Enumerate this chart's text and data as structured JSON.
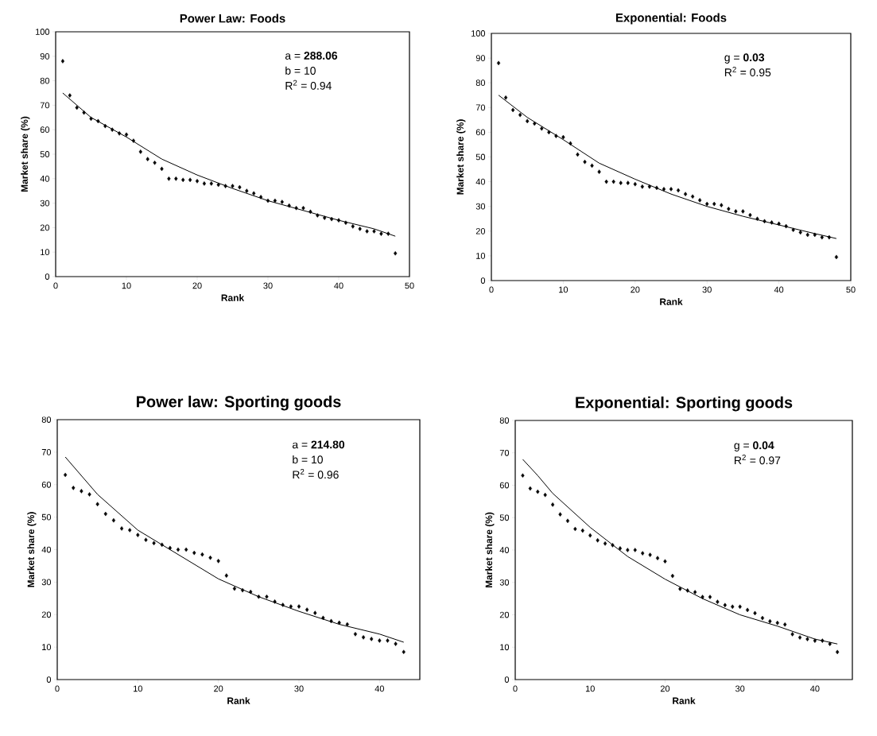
{
  "chart_data": [
    {
      "type": "scatter",
      "title": "Power Law: Foods",
      "xlabel": "Rank",
      "ylabel": "Market share (%)",
      "marker": "diamond",
      "xlim": [
        0,
        50
      ],
      "xticks": [
        0,
        10,
        20,
        30,
        40,
        50
      ],
      "ylim": [
        0,
        100
      ],
      "yticks": [
        0,
        10,
        20,
        30,
        40,
        50,
        60,
        70,
        80,
        90,
        100
      ],
      "annotations": [
        "a = **288.06**",
        "b = 10",
        "R$^{2}$ = 0.94"
      ],
      "series": [
        {
          "color": "#000000",
          "x": [
            1,
            2,
            3,
            4,
            5,
            6,
            7,
            8,
            9,
            10,
            11,
            12,
            13,
            14,
            15,
            16,
            17,
            18,
            19,
            20,
            21,
            22,
            23,
            24,
            25,
            26,
            27,
            28,
            29,
            30,
            31,
            32,
            33,
            34,
            35,
            36,
            37,
            38,
            39,
            40,
            41,
            42,
            43,
            44,
            45,
            46,
            47,
            48
          ],
          "values": [
            88,
            74,
            69,
            67,
            64.5,
            63.5,
            61.5,
            60,
            58.5,
            58,
            55.5,
            51,
            48,
            46.5,
            44,
            40,
            40,
            39.5,
            39.5,
            39,
            38,
            38,
            37.5,
            37,
            37,
            36.5,
            35,
            34,
            32.5,
            31,
            31,
            30.5,
            29,
            28,
            28,
            26.5,
            25,
            24,
            23.5,
            23,
            22,
            20.5,
            19.5,
            18.5,
            18.5,
            17.5,
            17.5,
            9.5
          ]
        },
        {
          "type": "line",
          "color": "#000000",
          "marker": "none",
          "x": [
            1,
            5,
            10,
            15,
            20,
            25,
            30,
            35,
            40,
            45,
            48
          ],
          "values": [
            75,
            65,
            57,
            48,
            41.5,
            36,
            31,
            27,
            23,
            19.5,
            16.5
          ]
        }
      ]
    },
    {
      "type": "scatter",
      "title": "Exponential: Foods",
      "xlabel": "Rank",
      "ylabel": "Market share (%)",
      "marker": "diamond",
      "xlim": [
        0,
        50
      ],
      "xticks": [
        0,
        10,
        20,
        30,
        40,
        50
      ],
      "ylim": [
        0,
        100
      ],
      "yticks": [
        0,
        10,
        20,
        30,
        40,
        50,
        60,
        70,
        80,
        90,
        100
      ],
      "annotations": [
        "g = **0.03**",
        "R$^{2}$ = 0.95"
      ],
      "series": [
        {
          "color": "#000000",
          "x": [
            1,
            2,
            3,
            4,
            5,
            6,
            7,
            8,
            9,
            10,
            11,
            12,
            13,
            14,
            15,
            16,
            17,
            18,
            19,
            20,
            21,
            22,
            23,
            24,
            25,
            26,
            27,
            28,
            29,
            30,
            31,
            32,
            33,
            34,
            35,
            36,
            37,
            38,
            39,
            40,
            41,
            42,
            43,
            44,
            45,
            46,
            47,
            48
          ],
          "values": [
            88,
            74,
            69,
            67,
            64.5,
            63.5,
            61.5,
            60,
            58.5,
            58,
            55.5,
            51,
            48,
            46.5,
            44,
            40,
            40,
            39.5,
            39.5,
            39,
            38,
            38,
            37.5,
            37,
            37,
            36.5,
            35,
            34,
            32.5,
            31,
            31,
            30.5,
            29,
            28,
            28,
            26.5,
            25,
            24,
            23.5,
            23,
            22,
            20.5,
            19.5,
            18.5,
            18.5,
            17.5,
            17.5,
            9.5
          ]
        },
        {
          "type": "line",
          "color": "#000000",
          "marker": "none",
          "x": [
            1,
            5,
            10,
            15,
            20,
            25,
            30,
            35,
            40,
            45,
            48
          ],
          "values": [
            75,
            66,
            57,
            47.5,
            41,
            35,
            30,
            26,
            22.5,
            19,
            17
          ]
        }
      ]
    },
    {
      "type": "scatter",
      "title": "Power law: Sporting goods",
      "xlabel": "Rank",
      "ylabel": "Market share (%)",
      "marker": "diamond",
      "xlim": [
        0,
        45
      ],
      "xticks": [
        0,
        10,
        20,
        30,
        40
      ],
      "ylim": [
        0,
        80
      ],
      "yticks": [
        0,
        10,
        20,
        30,
        40,
        50,
        60,
        70,
        80
      ],
      "annotations": [
        "a = **214.80**",
        "b = 10",
        "R$^{2}$ = 0.96"
      ],
      "series": [
        {
          "color": "#000000",
          "x": [
            1,
            2,
            3,
            4,
            5,
            6,
            7,
            8,
            9,
            10,
            11,
            12,
            13,
            14,
            15,
            16,
            17,
            18,
            19,
            20,
            21,
            22,
            23,
            24,
            25,
            26,
            27,
            28,
            29,
            30,
            31,
            32,
            33,
            34,
            35,
            36,
            37,
            38,
            39,
            40,
            41,
            42,
            43
          ],
          "values": [
            63,
            59,
            58,
            57,
            54,
            51,
            49,
            46.5,
            46,
            44.5,
            43,
            42,
            41.5,
            40.5,
            40,
            40,
            39,
            38.5,
            37.5,
            36.5,
            32,
            28,
            27.5,
            27,
            25.5,
            25.5,
            24,
            23,
            22.5,
            22.5,
            21.5,
            20.5,
            19,
            18,
            17.5,
            17,
            14,
            13,
            12.5,
            12,
            12,
            11,
            8.5
          ]
        },
        {
          "type": "line",
          "color": "#000000",
          "marker": "none",
          "x": [
            1,
            5,
            10,
            15,
            20,
            25,
            30,
            35,
            40,
            43
          ],
          "values": [
            68.5,
            57,
            46,
            38.5,
            31,
            25.5,
            21,
            17,
            14,
            11.5
          ]
        }
      ]
    },
    {
      "type": "scatter",
      "title": "Exponential: Sporting goods",
      "xlabel": "Rank",
      "ylabel": "Market share (%)",
      "marker": "diamond",
      "xlim": [
        0,
        45
      ],
      "xticks": [
        0,
        10,
        20,
        30,
        40
      ],
      "ylim": [
        0,
        80
      ],
      "yticks": [
        0,
        10,
        20,
        30,
        40,
        50,
        60,
        70,
        80
      ],
      "annotations": [
        "g = **0.04**",
        "R$^{2}$ = 0.97"
      ],
      "series": [
        {
          "color": "#000000",
          "x": [
            1,
            2,
            3,
            4,
            5,
            6,
            7,
            8,
            9,
            10,
            11,
            12,
            13,
            14,
            15,
            16,
            17,
            18,
            19,
            20,
            21,
            22,
            23,
            24,
            25,
            26,
            27,
            28,
            29,
            30,
            31,
            32,
            33,
            34,
            35,
            36,
            37,
            38,
            39,
            40,
            41,
            42,
            43
          ],
          "values": [
            63,
            59,
            58,
            57,
            54,
            51,
            49,
            46.5,
            46,
            44.5,
            43,
            42,
            41.5,
            40.5,
            40,
            40,
            39,
            38.5,
            37.5,
            36.5,
            32,
            28,
            27.5,
            27,
            25.5,
            25.5,
            24,
            23,
            22.5,
            22.5,
            21.5,
            20.5,
            19,
            18,
            17.5,
            17,
            14,
            13,
            12.5,
            12,
            12,
            11,
            8.5
          ]
        },
        {
          "type": "line",
          "color": "#000000",
          "marker": "none",
          "x": [
            1,
            3,
            5,
            10,
            15,
            20,
            25,
            30,
            35,
            40,
            43
          ],
          "values": [
            68,
            63,
            57.5,
            47,
            38,
            31,
            25,
            20,
            16.5,
            12.5,
            11
          ]
        }
      ]
    }
  ]
}
